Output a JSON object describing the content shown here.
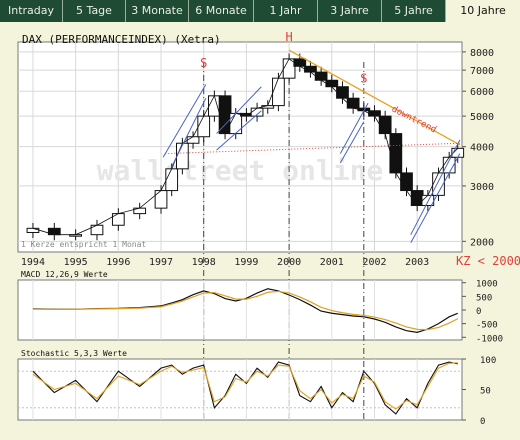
{
  "tabs": [
    {
      "label": "Intraday",
      "active": false
    },
    {
      "label": "5 Tage",
      "active": false
    },
    {
      "label": "3 Monate",
      "active": false
    },
    {
      "label": "6 Monate",
      "active": false
    },
    {
      "label": "1 Jahr",
      "active": false
    },
    {
      "label": "3 Jahre",
      "active": false
    },
    {
      "label": "5 Jahre",
      "active": false
    },
    {
      "label": "10 Jahre",
      "active": true
    }
  ],
  "colors": {
    "tab_bg": "#1f4a33",
    "panel_bg": "#ffffff",
    "page_bg": "#f4f4dc",
    "annot": "#e0403a",
    "trend": "#e8a020",
    "channel": "#4a63c8"
  },
  "chart_data": [
    {
      "type": "candlestick",
      "title": "DAX (PERFORMANCEINDEX) (Xetra)",
      "yscale": "log",
      "ylim": [
        1850,
        8600
      ],
      "y_ticks": [
        2000,
        3000,
        4000,
        5000,
        6000,
        7000,
        8000
      ],
      "x_ticks": [
        "1994",
        "1995",
        "1996",
        "1997",
        "1998",
        "1999",
        "2000",
        "2001",
        "2002",
        "2003"
      ],
      "watermark": "wallstreet online",
      "source_note": "1 Kerze entspricht 1 Monat",
      "annotations": [
        {
          "text": "S",
          "x": 1998.0,
          "y": 7150
        },
        {
          "text": "H",
          "x": 2000.0,
          "y": 9200
        },
        {
          "text": "S",
          "x": 2001.75,
          "y": 6400
        },
        {
          "text": "downtrend",
          "x": 2002.9,
          "y": 4800
        },
        {
          "text": "KZ < 2000",
          "x": 2004.05,
          "y": 1730
        }
      ],
      "x": [
        1994.0,
        1994.5,
        1995.0,
        1995.5,
        1996.0,
        1996.5,
        1997.0,
        1997.25,
        1997.5,
        1997.75,
        1998.0,
        1998.25,
        1998.5,
        1998.75,
        1999.0,
        1999.25,
        1999.5,
        1999.75,
        2000.0,
        2000.25,
        2000.5,
        2000.75,
        2001.0,
        2001.25,
        2001.5,
        2001.75,
        2002.0,
        2002.25,
        2002.5,
        2002.75,
        2003.0,
        2003.25,
        2003.5,
        2003.75,
        2003.95
      ],
      "close": [
        2200,
        2100,
        2100,
        2250,
        2450,
        2550,
        2900,
        3400,
        4100,
        4300,
        5000,
        5800,
        4400,
        5100,
        5000,
        5300,
        5400,
        6600,
        7600,
        7200,
        6900,
        6500,
        6200,
        5700,
        5300,
        5200,
        5000,
        4400,
        3300,
        2900,
        2600,
        2800,
        3300,
        3700,
        3950
      ],
      "trendlines": [
        {
          "name": "downtrend",
          "from": [
            2000.0,
            8100
          ],
          "to": [
            2004.0,
            4050
          ]
        },
        {
          "name": "support",
          "from": [
            1997.1,
            3800
          ],
          "to": [
            2004.0,
            4100
          ]
        }
      ],
      "vlines": [
        1998.0,
        2000.0,
        2001.75
      ]
    },
    {
      "type": "line",
      "title": "MACD 12,26,9 Werte",
      "ylim": [
        -1100,
        1100
      ],
      "y_ticks": [
        1000,
        500,
        0,
        -500,
        -1000
      ],
      "series": [
        {
          "values": [
            40,
            30,
            30,
            50,
            60,
            90,
            150,
            260,
            380,
            560,
            700,
            600,
            420,
            330,
            430,
            620,
            780,
            700,
            550,
            380,
            180,
            -40,
            -120,
            -170,
            -220,
            -250,
            -330,
            -450,
            -620,
            -760,
            -820,
            -700,
            -500,
            -250,
            -120
          ]
        },
        {
          "values": [
            30,
            25,
            28,
            40,
            50,
            70,
            120,
            220,
            330,
            480,
            620,
            640,
            520,
            400,
            400,
            500,
            650,
            680,
            620,
            480,
            300,
            100,
            -20,
            -100,
            -160,
            -200,
            -260,
            -350,
            -480,
            -620,
            -710,
            -720,
            -640,
            -480,
            -320
          ]
        }
      ]
    },
    {
      "type": "line",
      "title": "Stochastic 5,3,3 Werte",
      "ylim": [
        0,
        100
      ],
      "y_ticks": [
        100,
        50,
        0
      ],
      "series": [
        {
          "values": [
            80,
            45,
            65,
            30,
            80,
            55,
            85,
            90,
            75,
            85,
            90,
            20,
            40,
            75,
            60,
            85,
            70,
            95,
            90,
            40,
            30,
            55,
            20,
            45,
            30,
            80,
            60,
            25,
            10,
            35,
            20,
            60,
            90,
            95,
            92
          ]
        },
        {
          "values": [
            75,
            50,
            60,
            35,
            72,
            58,
            80,
            88,
            78,
            82,
            86,
            30,
            38,
            68,
            62,
            80,
            72,
            90,
            88,
            48,
            35,
            50,
            28,
            42,
            35,
            72,
            62,
            30,
            18,
            32,
            25,
            55,
            85,
            93,
            94
          ]
        }
      ]
    }
  ]
}
